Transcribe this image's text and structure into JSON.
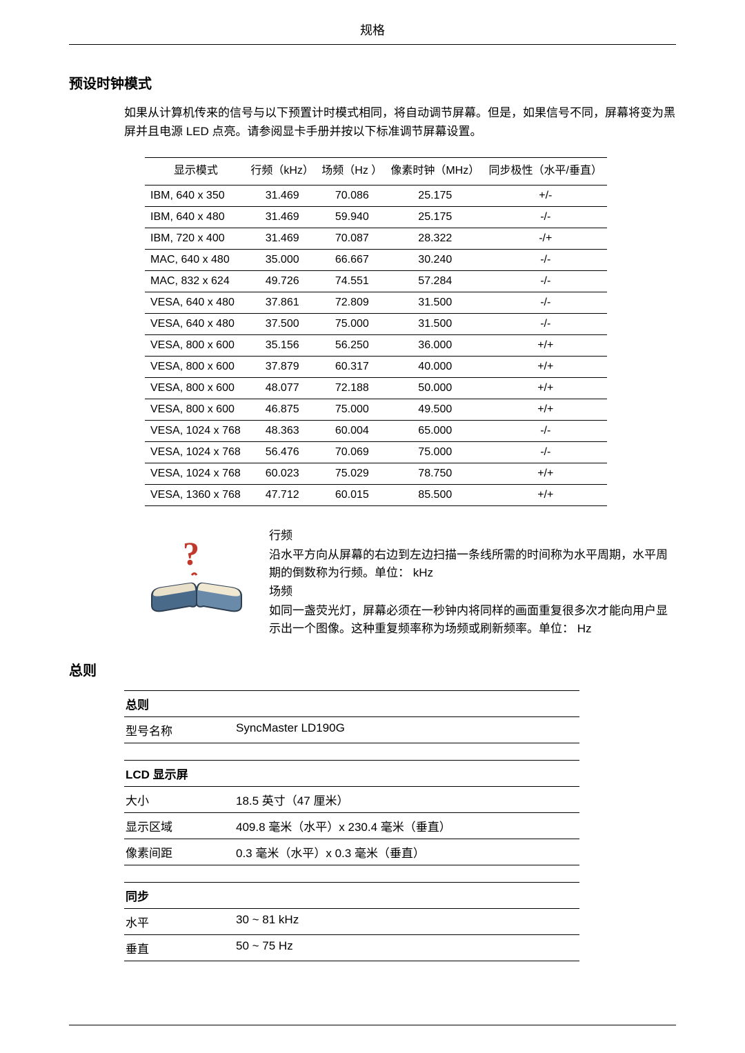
{
  "header": {
    "title": "规格"
  },
  "preset": {
    "heading": "预设时钟模式",
    "intro": "如果从计算机传来的信号与以下预置计时模式相同，将自动调节屏幕。但是，如果信号不同，屏幕将变为黑屏并且电源 LED 点亮。请参阅显卡手册并按以下标准调节屏幕设置。",
    "columns": [
      "显示模式",
      "行频（kHz）",
      "场频（Hz ）",
      "像素时钟（MHz）",
      "同步极性（水平/垂直）"
    ],
    "rows": [
      [
        "IBM, 640 x 350",
        "31.469",
        "70.086",
        "25.175",
        "+/-"
      ],
      [
        "IBM, 640 x 480",
        "31.469",
        "59.940",
        "25.175",
        "-/-"
      ],
      [
        "IBM, 720 x 400",
        "31.469",
        "70.087",
        "28.322",
        "-/+"
      ],
      [
        "MAC, 640 x 480",
        "35.000",
        "66.667",
        "30.240",
        "-/-"
      ],
      [
        "MAC, 832 x 624",
        "49.726",
        "74.551",
        "57.284",
        "-/-"
      ],
      [
        "VESA, 640 x 480",
        "37.861",
        "72.809",
        "31.500",
        "-/-"
      ],
      [
        "VESA, 640 x 480",
        "37.500",
        "75.000",
        "31.500",
        "-/-"
      ],
      [
        "VESA, 800 x 600",
        "35.156",
        "56.250",
        "36.000",
        "+/+"
      ],
      [
        "VESA, 800 x 600",
        "37.879",
        "60.317",
        "40.000",
        "+/+"
      ],
      [
        "VESA, 800 x 600",
        "48.077",
        "72.188",
        "50.000",
        "+/+"
      ],
      [
        "VESA, 800 x 600",
        "46.875",
        "75.000",
        "49.500",
        "+/+"
      ],
      [
        "VESA, 1024 x 768",
        "48.363",
        "60.004",
        "65.000",
        "-/-"
      ],
      [
        "VESA, 1024 x 768",
        "56.476",
        "70.069",
        "75.000",
        "-/-"
      ],
      [
        "VESA, 1024 x 768",
        "60.023",
        "75.029",
        "78.750",
        "+/+"
      ],
      [
        "VESA, 1360 x 768",
        "47.712",
        "60.015",
        "85.500",
        "+/+"
      ]
    ],
    "definitions": {
      "hfreq_title": "行频",
      "hfreq_body": "沿水平方向从屏幕的右边到左边扫描一条线所需的时间称为水平周期，水平周期的倒数称为行频。单位： kHz",
      "vfreq_title": "场频",
      "vfreq_body": "如同一盏荧光灯，屏幕必须在一秒钟内将同样的画面重复很多次才能向用户显示出一个图像。这种重复频率称为场频或刷新频率。单位： Hz"
    }
  },
  "general": {
    "heading": "总则",
    "groups": [
      {
        "title": "总则",
        "rows": [
          {
            "label": "型号名称",
            "value": "SyncMaster LD190G"
          }
        ]
      },
      {
        "title": "LCD 显示屏",
        "rows": [
          {
            "label": "大小",
            "value": "18.5 英寸（47 厘米）"
          },
          {
            "label": "显示区域",
            "value": "409.8 毫米（水平）x 230.4 毫米（垂直）"
          },
          {
            "label": "像素间距",
            "value": "0.3 毫米（水平）x 0.3 毫米（垂直）"
          }
        ]
      },
      {
        "title": "同步",
        "rows": [
          {
            "label": "水平",
            "value": "30 ~ 81 kHz"
          },
          {
            "label": "垂直",
            "value": "50 ~ 75 Hz"
          }
        ]
      }
    ]
  }
}
